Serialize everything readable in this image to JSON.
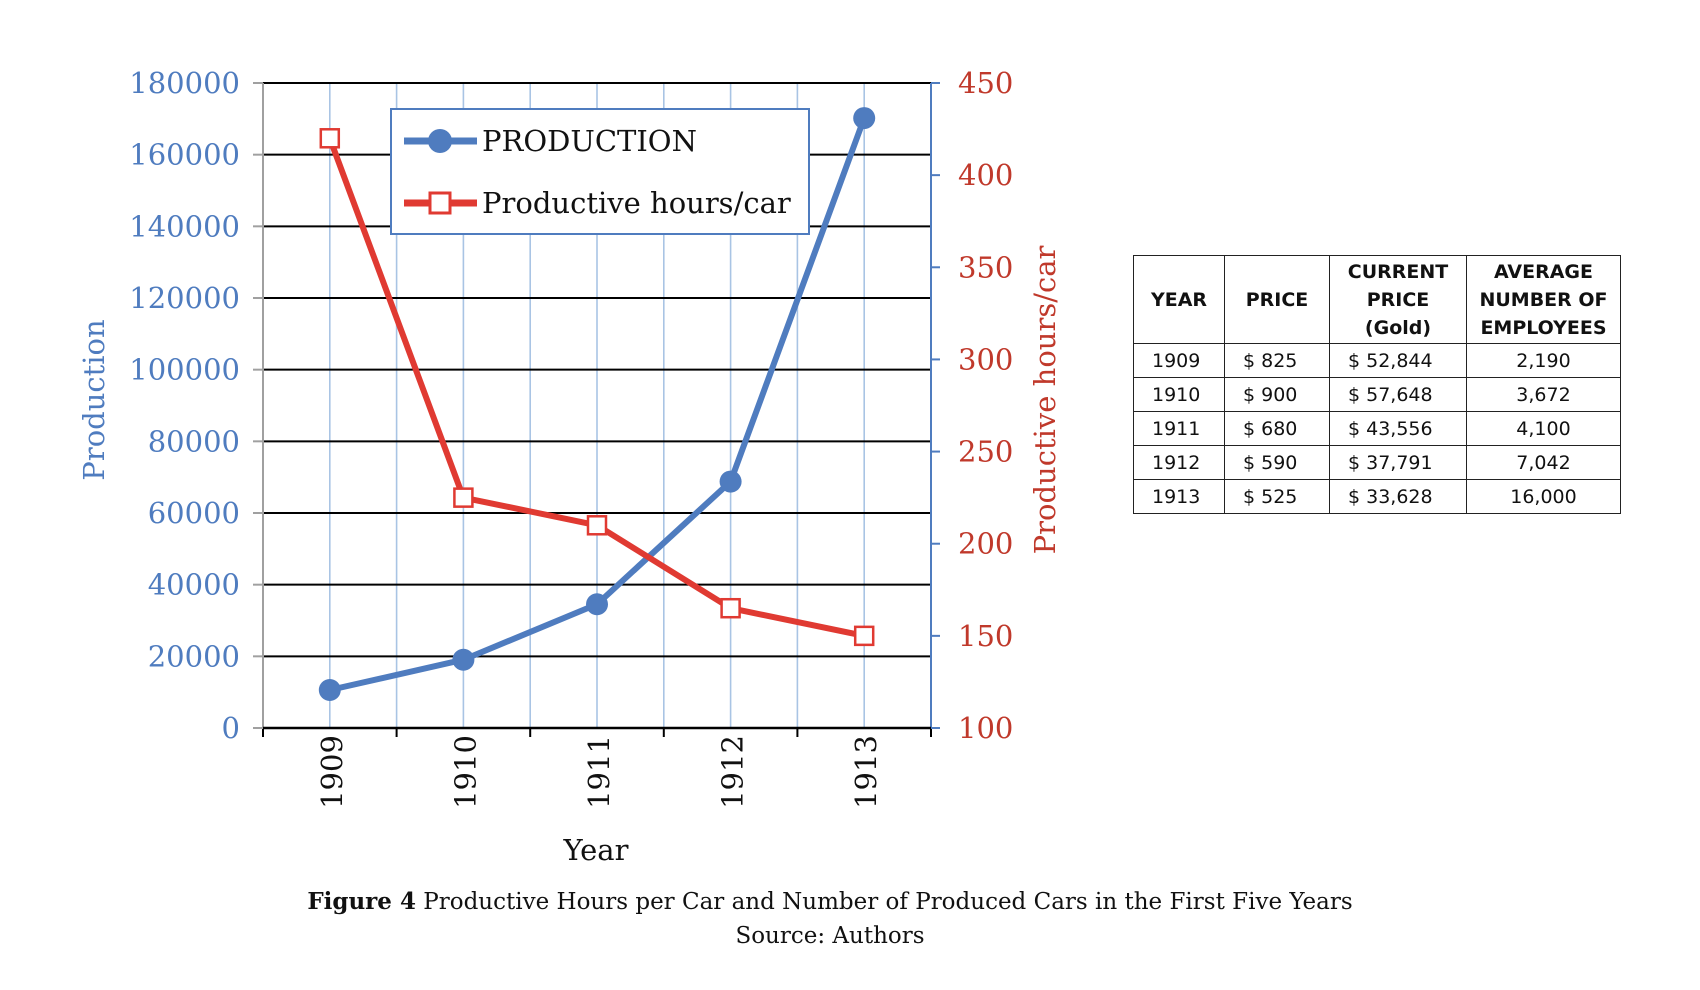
{
  "chart_data": {
    "type": "line",
    "categories": [
      "1909",
      "1910",
      "1911",
      "1912",
      "1913"
    ],
    "xlabel": "Year",
    "y_left": {
      "label": "Production",
      "range": [
        0,
        180000
      ],
      "ticks": [
        "0",
        "20000",
        "40000",
        "60000",
        "80000",
        "100000",
        "120000",
        "140000",
        "160000",
        "180000"
      ]
    },
    "y_right": {
      "label": "Productive hours/car",
      "range": [
        100,
        450
      ],
      "ticks": [
        "100",
        "150",
        "200",
        "250",
        "300",
        "350",
        "400",
        "450"
      ]
    },
    "grid": true,
    "legend_position": "top-center",
    "series": [
      {
        "name": "PRODUCTION",
        "axis": "left",
        "color": "#4f7cbf",
        "marker": "filled-circle",
        "values": [
          10607,
          19051,
          34528,
          68773,
          170211
        ]
      },
      {
        "name": "Productive hours/car",
        "axis": "right",
        "color": "#e03a32",
        "marker": "open-square",
        "values": [
          420,
          225,
          210,
          165,
          150
        ]
      }
    ]
  },
  "table": {
    "headers": [
      "YEAR",
      "PRICE",
      "CURRENT PRICE (Gold)",
      "AVERAGE NUMBER OF EMPLOYEES"
    ],
    "rows": [
      [
        "1909",
        "$ 825",
        "$ 52,844",
        "2,190"
      ],
      [
        "1910",
        "$ 900",
        "$ 57,648",
        "3,672"
      ],
      [
        "1911",
        "$ 680",
        "$ 43,556",
        "4,100"
      ],
      [
        "1912",
        "$ 590",
        "$ 37,791",
        "7,042"
      ],
      [
        "1913",
        "$ 525",
        "$ 33,628",
        "16,000"
      ]
    ]
  },
  "caption": {
    "label": "Figure 4",
    "text": " Productive Hours per Car and Number of Produced Cars in the First Five Years",
    "source": "Source: Authors"
  },
  "colors": {
    "left_axis": "#4f7cbf",
    "right_axis": "#c0392b",
    "grid_h": "#000000",
    "grid_v": "#a9c4e4"
  }
}
